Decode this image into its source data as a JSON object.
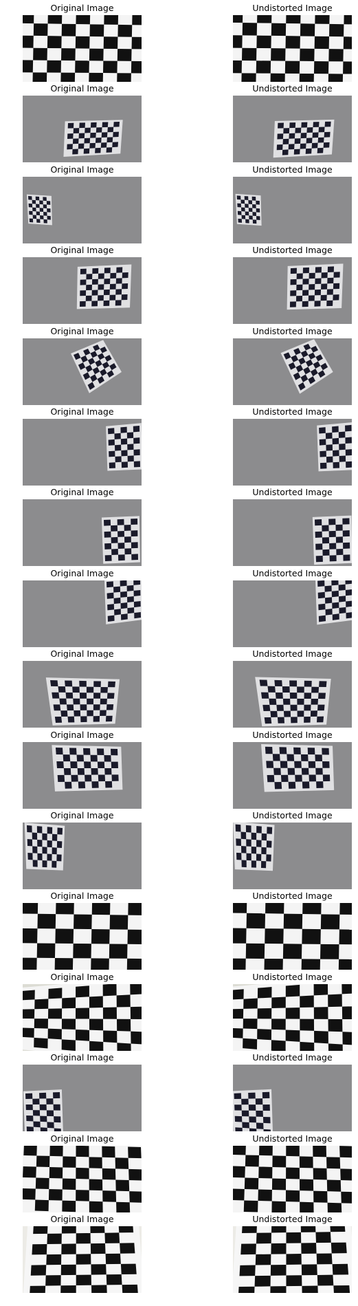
{
  "figure": {
    "columns": [
      {
        "title": "Original Image"
      },
      {
        "title": "Undistorted Image"
      }
    ],
    "rows": [
      {
        "scene": "closeup-board",
        "colors": {
          "background": "#f2f2f2",
          "paper": "#f4f4f4",
          "dark": "#111111"
        },
        "board": {
          "cols": 9,
          "rows": 6
        }
      },
      {
        "scene": "board-center-right",
        "colors": {
          "background": "#8c8c8e",
          "paper": "#e0e0e2",
          "dark": "#1a1a2a"
        },
        "board": {
          "cols": 9,
          "rows": 6
        }
      },
      {
        "scene": "small-board-left",
        "colors": {
          "background": "#8c8c8e",
          "paper": "#e0e0e2",
          "dark": "#1a1a2a"
        },
        "board": {
          "cols": 6,
          "rows": 7
        }
      },
      {
        "scene": "board-right",
        "colors": {
          "background": "#8c8c8e",
          "paper": "#e0e0e2",
          "dark": "#1a1a2a"
        },
        "board": {
          "cols": 8,
          "rows": 7
        }
      },
      {
        "scene": "rotated-board",
        "colors": {
          "background": "#8c8c8e",
          "paper": "#e0e0e2",
          "dark": "#1a1a2a"
        },
        "board": {
          "cols": 6,
          "rows": 7
        }
      },
      {
        "scene": "board-far-right",
        "colors": {
          "background": "#8c8c8e",
          "paper": "#e0e0e2",
          "dark": "#1a1a2a"
        },
        "board": {
          "cols": 5,
          "rows": 7
        }
      },
      {
        "scene": "board-far-right",
        "colors": {
          "background": "#8c8c8e",
          "paper": "#e0e0e2",
          "dark": "#1a1a2a"
        },
        "board": {
          "cols": 5,
          "rows": 7
        }
      },
      {
        "scene": "board-top-right",
        "colors": {
          "background": "#8c8c8e",
          "paper": "#e0e0e2",
          "dark": "#1a1a2a"
        },
        "board": {
          "cols": 5,
          "rows": 7
        }
      },
      {
        "scene": "board-center-wide",
        "colors": {
          "background": "#8c8c8e",
          "paper": "#e0e0e2",
          "dark": "#1a1a2a"
        },
        "board": {
          "cols": 9,
          "rows": 7
        }
      },
      {
        "scene": "board-center",
        "colors": {
          "background": "#8c8c8e",
          "paper": "#e0e0e2",
          "dark": "#1a1a2a"
        },
        "board": {
          "cols": 9,
          "rows": 6
        }
      },
      {
        "scene": "board-top-left",
        "colors": {
          "background": "#8c8c8e",
          "paper": "#e0e0e2",
          "dark": "#1a1a2a"
        },
        "board": {
          "cols": 7,
          "rows": 6
        }
      },
      {
        "scene": "closeup-board",
        "colors": {
          "background": "#f2f2f2",
          "paper": "#f4f4f4",
          "dark": "#111111"
        },
        "board": {
          "cols": 7,
          "rows": 5
        }
      },
      {
        "scene": "tilted-closeup",
        "colors": {
          "background": "#dcdcd4",
          "paper": "#f4f4f4",
          "dark": "#111111"
        },
        "board": {
          "cols": 9,
          "rows": 6
        }
      },
      {
        "scene": "board-bottom-left",
        "colors": {
          "background": "#8c8c8e",
          "paper": "#e0e0e2",
          "dark": "#1a1a2a"
        },
        "board": {
          "cols": 5,
          "rows": 7
        }
      },
      {
        "scene": "perspective-closeup",
        "colors": {
          "background": "#d8d6cc",
          "paper": "#f4f4f4",
          "dark": "#111111"
        },
        "board": {
          "cols": 9,
          "rows": 6
        }
      },
      {
        "scene": "skewed-closeup",
        "colors": {
          "background": "#ecebe6",
          "paper": "#f6f6f6",
          "dark": "#111111"
        },
        "board": {
          "cols": 7,
          "rows": 7
        }
      }
    ]
  }
}
